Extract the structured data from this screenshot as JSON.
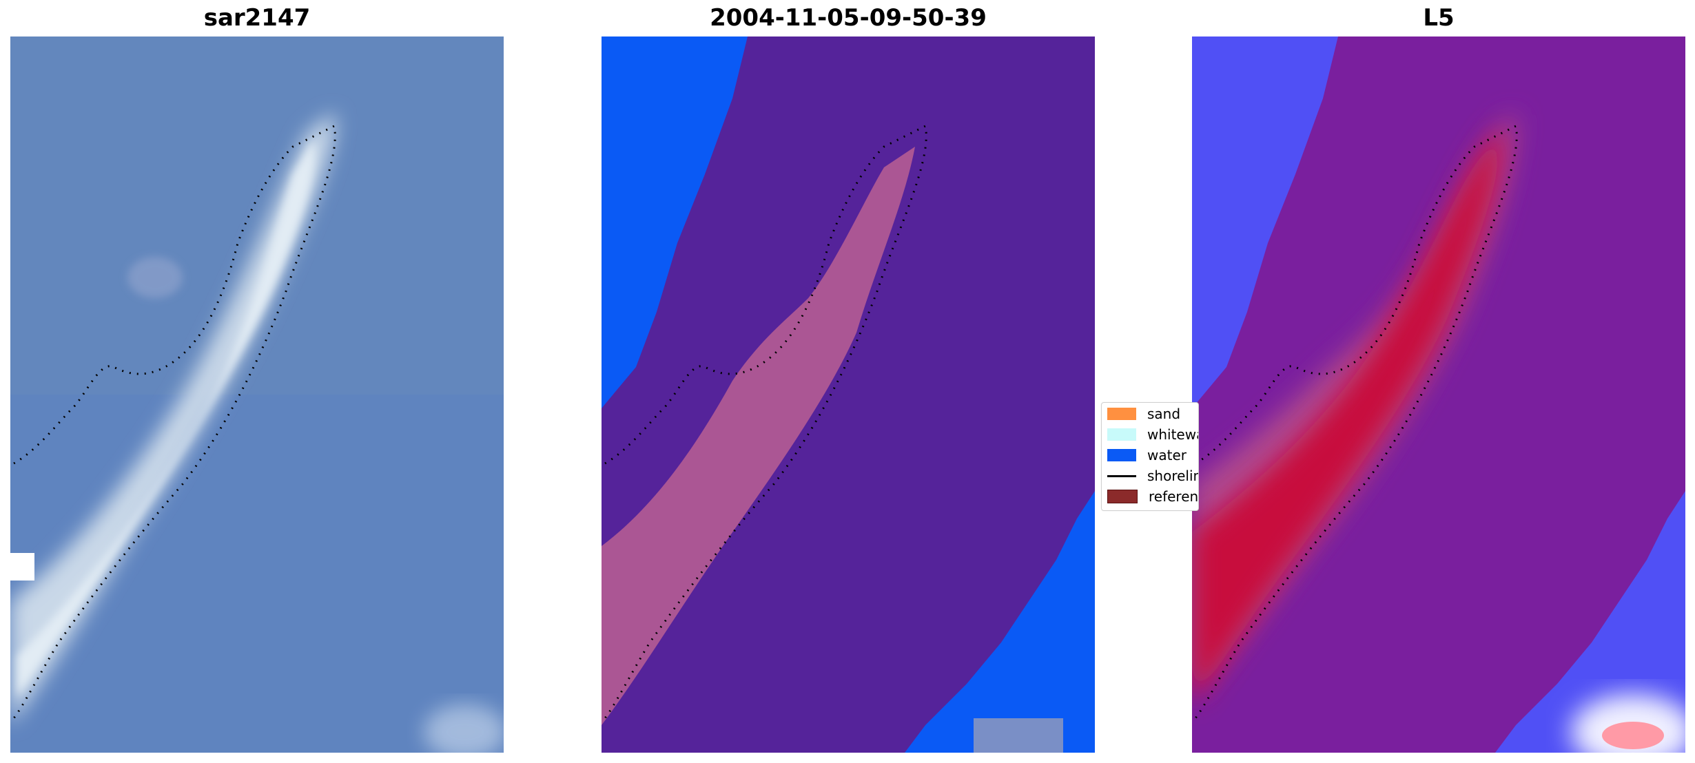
{
  "panels": [
    {
      "title": "sar2147"
    },
    {
      "title": "2004-11-05-09-50-39"
    },
    {
      "title": "L5"
    }
  ],
  "legend": {
    "items": [
      {
        "label": "sand",
        "color": "#ff9040",
        "kind": "patch"
      },
      {
        "label": "whitewater",
        "color": "#c8fafa",
        "kind": "patch"
      },
      {
        "label": "water",
        "color": "#0a5af5",
        "kind": "patch"
      },
      {
        "label": "shoreline",
        "color": "#000000",
        "kind": "line"
      },
      {
        "label": "reference",
        "color": "#8b2a2a",
        "kind": "patch"
      }
    ]
  },
  "colors": {
    "rgb_water": "#5f84bf",
    "rgb_sand": "#d8e4ee",
    "class_water": "#0a5af5",
    "class_overlay": "#55239a",
    "class_sand": "#b05a94",
    "prob_water": "#5050f5",
    "prob_mid": "#7a1f9e",
    "prob_sand": "#c8103c"
  }
}
